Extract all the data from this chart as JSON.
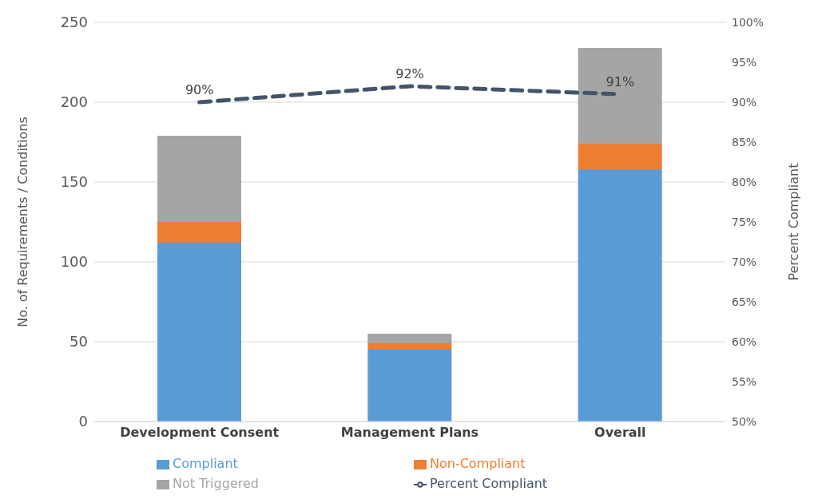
{
  "chart_data": {
    "type": "bar",
    "stacked": true,
    "categories": [
      "Development Consent",
      "Management Plans",
      "Overall"
    ],
    "ylabel": "No. of Requirements / Conditions",
    "y2label": "Percent Compliant",
    "ylim": [
      0,
      250
    ],
    "yticks": [
      0,
      50,
      100,
      150,
      200,
      250
    ],
    "y2lim": [
      50,
      100
    ],
    "y2ticks": [
      {
        "value": 50,
        "label": "50%"
      },
      {
        "value": 55,
        "label": "55%"
      },
      {
        "value": 60,
        "label": "60%"
      },
      {
        "value": 65,
        "label": "65%"
      },
      {
        "value": 70,
        "label": "70%"
      },
      {
        "value": 75,
        "label": "75%"
      },
      {
        "value": 80,
        "label": "80%"
      },
      {
        "value": 85,
        "label": "85%"
      },
      {
        "value": 90,
        "label": "90%"
      },
      {
        "value": 95,
        "label": "95%"
      },
      {
        "value": 100,
        "label": "100%"
      }
    ],
    "grid": "y",
    "legend": "bottom",
    "series": [
      {
        "name": "Compliant",
        "color": "#5b9bd5",
        "values": [
          112,
          45,
          158
        ]
      },
      {
        "name": "Non-Compliant",
        "color": "#ed7d31",
        "values": [
          13,
          4,
          16
        ]
      },
      {
        "name": "Not Triggered",
        "color": "#a5a5a5",
        "values": [
          54,
          6,
          60
        ]
      },
      {
        "name": "Percent Compliant",
        "type": "line",
        "axis": "y2",
        "color": "#44546a",
        "line_style": "dashed",
        "marker": "none",
        "values": [
          90,
          92,
          91
        ],
        "value_labels": [
          "90%",
          "92%",
          "91%"
        ]
      }
    ]
  }
}
